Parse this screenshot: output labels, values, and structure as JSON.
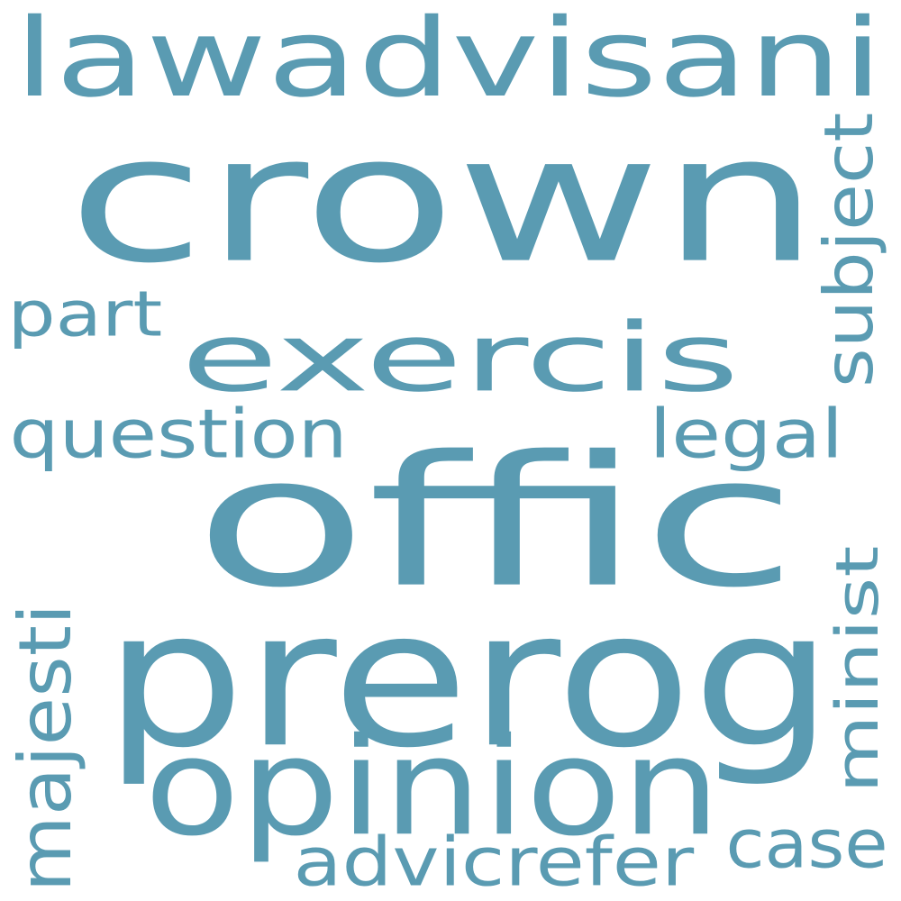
{
  "word_color": "#5a9bb2",
  "background": "#ffffff",
  "words": [
    {
      "id": "crown",
      "text": "crown"
    },
    {
      "id": "lawadvisani",
      "text": "lawadvisani"
    },
    {
      "id": "exercis",
      "text": "exercis"
    },
    {
      "id": "part",
      "text": "part"
    },
    {
      "id": "question",
      "text": "question"
    },
    {
      "id": "subject",
      "text": "subject"
    },
    {
      "id": "legal",
      "text": "legal"
    },
    {
      "id": "offic",
      "text": "offic"
    },
    {
      "id": "prerog",
      "text": "prerog"
    },
    {
      "id": "minist",
      "text": "minist"
    },
    {
      "id": "majesti",
      "text": "majesti"
    },
    {
      "id": "opinion",
      "text": "opinion"
    },
    {
      "id": "case",
      "text": "case"
    },
    {
      "id": "advicrefer",
      "text": "advicrefer"
    }
  ]
}
